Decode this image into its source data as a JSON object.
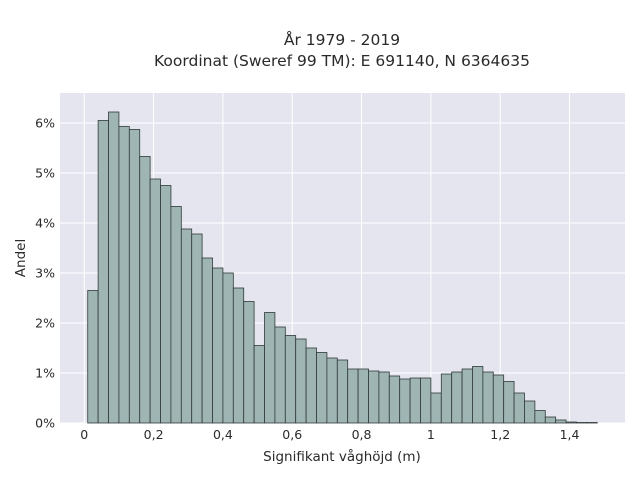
{
  "chart_data": {
    "type": "bar",
    "title_line1": "År 1979 - 2019",
    "title_line2": "Koordinat (Sweref 99 TM): E 691140, N 6364635",
    "xlabel": "Signifikant våghöjd (m)",
    "ylabel": "Andel",
    "xlim": [
      -0.07,
      1.56
    ],
    "ylim": [
      0,
      6.6
    ],
    "bin_width": 0.03,
    "bin_start": 0.01,
    "x_ticks": [
      0,
      0.2,
      0.4,
      0.6,
      0.8,
      1,
      1.2,
      1.4
    ],
    "x_tick_labels": [
      "0",
      "0,2",
      "0,4",
      "0,6",
      "0,8",
      "1",
      "1,2",
      "1,4"
    ],
    "y_ticks": [
      0,
      1,
      2,
      3,
      4,
      5,
      6
    ],
    "y_tick_labels": [
      "0%",
      "1%",
      "2%",
      "3%",
      "4%",
      "5%",
      "6%"
    ],
    "values": [
      2.65,
      6.05,
      6.22,
      5.93,
      5.87,
      5.33,
      4.88,
      4.75,
      4.33,
      3.88,
      3.78,
      3.3,
      3.1,
      3.0,
      2.7,
      2.43,
      1.55,
      2.21,
      1.92,
      1.75,
      1.68,
      1.5,
      1.41,
      1.3,
      1.26,
      1.08,
      1.08,
      1.04,
      1.02,
      0.94,
      0.88,
      0.9,
      0.9,
      0.6,
      0.98,
      1.02,
      1.08,
      1.13,
      1.02,
      0.96,
      0.83,
      0.6,
      0.44,
      0.25,
      0.12,
      0.06,
      0.02,
      0.01,
      0.01
    ],
    "grid": true,
    "colors": {
      "plot_background": "#e5e5f0",
      "grid": "#ffffff",
      "bar_fill": "#9fb5b3",
      "bar_stroke": "#2f3a39",
      "text": "#2a2a2a"
    }
  }
}
